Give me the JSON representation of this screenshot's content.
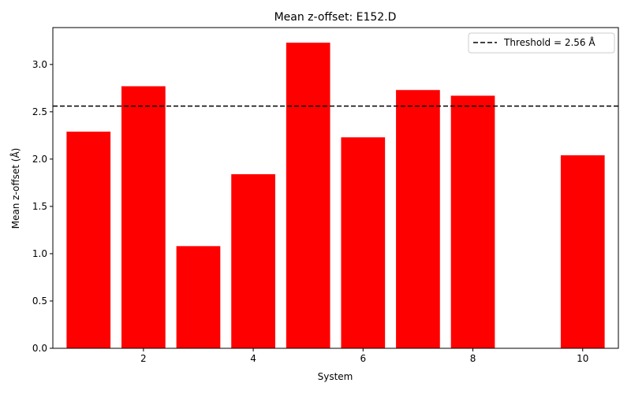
{
  "chart_data": {
    "type": "bar",
    "title": "Mean z-offset: E152.D",
    "xlabel": "System",
    "ylabel": "Mean z-offset (Å)",
    "x": [
      1,
      2,
      3,
      4,
      5,
      6,
      7,
      8,
      9,
      10
    ],
    "values": [
      2.29,
      2.77,
      1.08,
      1.84,
      3.23,
      2.23,
      2.73,
      2.67,
      0.0,
      2.04
    ],
    "bar_color": "#ff0000",
    "xlim": [
      0.35,
      10.65
    ],
    "ylim": [
      0,
      3.39
    ],
    "xticks": [
      2,
      4,
      6,
      8,
      10
    ],
    "yticks": [
      0.0,
      0.5,
      1.0,
      1.5,
      2.0,
      2.5,
      3.0
    ],
    "threshold": {
      "value": 2.56,
      "label": "Threshold = 2.56 Å",
      "color": "#000000",
      "style": "dashed"
    },
    "legend": {
      "position": "top-right",
      "entries": [
        "Threshold = 2.56 Å"
      ]
    },
    "grid": false
  }
}
